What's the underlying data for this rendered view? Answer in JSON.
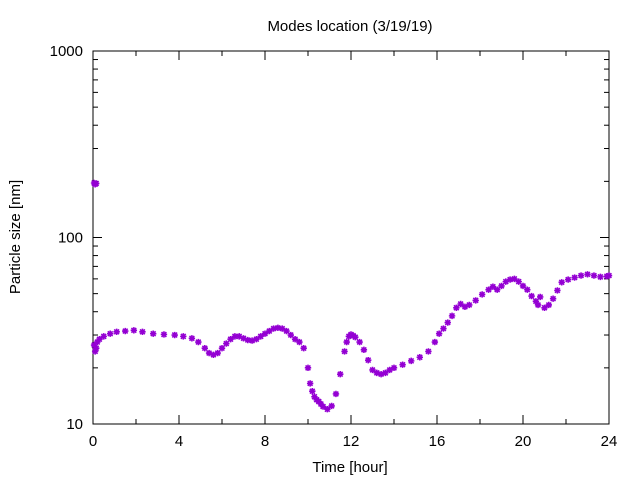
{
  "chart_data": {
    "type": "scatter",
    "title": "Modes location (3/19/19)",
    "xlabel": "Time [hour]",
    "ylabel": "Particle size [nm]",
    "xlim": [
      0,
      24
    ],
    "ylim": [
      10,
      1000
    ],
    "y_scale": "log",
    "x_ticks": [
      0,
      4,
      8,
      12,
      16,
      20,
      24
    ],
    "x_tick_labels": [
      "0",
      "4",
      "8",
      "12",
      "16",
      "20",
      "24"
    ],
    "y_ticks": [
      10,
      100,
      1000
    ],
    "y_tick_labels": [
      "10",
      "100",
      "1000"
    ],
    "grid": false,
    "legend": "none",
    "marker_color": "#9400d3",
    "series": [
      {
        "marker": "star",
        "x": [
          0.05,
          0.1,
          0.15,
          0.05,
          0.1,
          0.15,
          0.2,
          0.3,
          0.5,
          0.8,
          1.1,
          1.5,
          1.9,
          2.3,
          2.8,
          3.3,
          3.8,
          4.2,
          4.6,
          4.9,
          5.2,
          5.4,
          5.6,
          5.8,
          6.0,
          6.2,
          6.4,
          6.6,
          6.8,
          7.0,
          7.2,
          7.4,
          7.6,
          7.8,
          8.0,
          8.2,
          8.4,
          8.6,
          8.8,
          9.0,
          9.2,
          9.4,
          9.6,
          9.8,
          10.0,
          10.1,
          10.2,
          10.3,
          10.4,
          10.5,
          10.6,
          10.7,
          10.9,
          11.1,
          11.3,
          11.5,
          11.7,
          11.8,
          11.9,
          12.0,
          12.1,
          12.2,
          12.4,
          12.6,
          12.8,
          13.0,
          13.2,
          13.4,
          13.6,
          13.8,
          14.0,
          14.4,
          14.8,
          15.2,
          15.6,
          15.9,
          16.1,
          16.3,
          16.5,
          16.7,
          16.9,
          17.1,
          17.3,
          17.5,
          17.8,
          18.1,
          18.4,
          18.6,
          18.8,
          19.0,
          19.2,
          19.4,
          19.6,
          19.8,
          20.0,
          20.2,
          20.4,
          20.6,
          20.7,
          20.8,
          21.0,
          21.2,
          21.4,
          21.6,
          21.8,
          22.1,
          22.4,
          22.7,
          23.0,
          23.3,
          23.6,
          23.9,
          24.0
        ],
        "y": [
          196,
          193,
          195,
          26.5,
          24.5,
          25.5,
          27.5,
          28.5,
          29.5,
          30.5,
          31.2,
          31.5,
          31.8,
          31.2,
          30.5,
          30.2,
          30.0,
          29.5,
          28.8,
          27.5,
          25.5,
          24.0,
          23.5,
          24.0,
          25.5,
          27.0,
          28.5,
          29.5,
          29.5,
          28.8,
          28.2,
          28.0,
          28.5,
          29.5,
          30.5,
          31.5,
          32.5,
          32.8,
          32.5,
          31.5,
          30.0,
          28.5,
          27.5,
          25.5,
          20.0,
          16.5,
          15.0,
          14.0,
          13.5,
          13.2,
          12.8,
          12.4,
          12.0,
          12.5,
          14.5,
          18.5,
          24.5,
          27.5,
          29.5,
          30.2,
          29.8,
          29.2,
          27.5,
          25.0,
          22.0,
          19.5,
          18.8,
          18.5,
          18.8,
          19.5,
          20.0,
          20.8,
          21.8,
          22.8,
          24.5,
          27.5,
          30.5,
          32.5,
          35.0,
          38.0,
          42.0,
          44.0,
          42.5,
          43.5,
          46.0,
          49.5,
          52.5,
          54.5,
          52.5,
          55.0,
          58.0,
          59.5,
          60.0,
          58.0,
          55.0,
          52.5,
          48.5,
          45.5,
          43.5,
          48.0,
          42.0,
          43.5,
          47.0,
          52.0,
          57.5,
          59.5,
          61.0,
          62.5,
          63.5,
          62.5,
          61.5,
          62.0,
          62.5
        ]
      }
    ]
  }
}
